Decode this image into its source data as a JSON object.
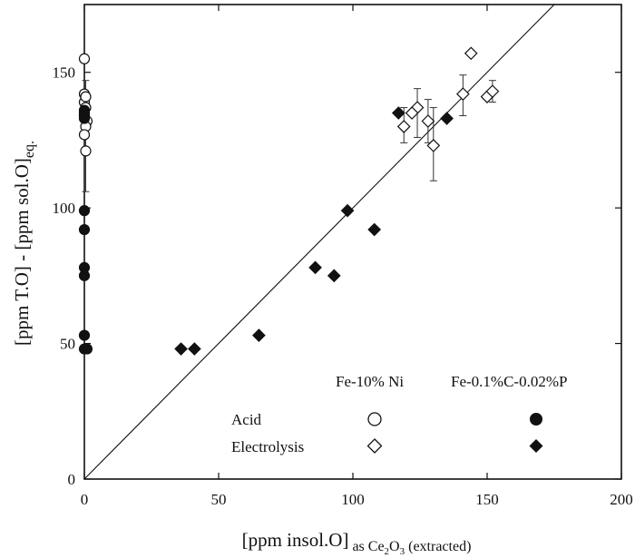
{
  "chart_data": {
    "type": "scatter",
    "xlim": [
      0,
      200
    ],
    "ylim": [
      0,
      175
    ],
    "xticks": [
      0,
      50,
      100,
      150,
      200
    ],
    "yticks": [
      0,
      50,
      100,
      150
    ],
    "grid": false,
    "xlabel": {
      "main": "[ppm insol.O]",
      "sub_prefix": "as Ce",
      "sub_2": "2",
      "sub_mid": "O",
      "sub_3": "3",
      "sub_suffix": " (extracted)"
    },
    "ylabel": {
      "main": "[ppm T.O] - [ppm sol.O]",
      "sub": "eq."
    },
    "reference_line": {
      "type": "y=x",
      "x": [
        0,
        200
      ],
      "y": [
        0,
        200
      ]
    },
    "legend": {
      "placement": "bottom-right",
      "column_headers": [
        "Fe-10% Ni",
        "Fe-0.1%C-0.02%P"
      ],
      "rows": [
        "Acid",
        "Electrolysis"
      ]
    },
    "series": [
      {
        "name": "Fe-10% Ni Acid",
        "marker": "circle-open",
        "points": [
          [
            0,
            155
          ],
          [
            0,
            142
          ],
          [
            0,
            139
          ],
          [
            0.5,
            141
          ],
          [
            0.5,
            137
          ],
          [
            0,
            134
          ],
          [
            1,
            132
          ],
          [
            0.5,
            130
          ],
          [
            0,
            127
          ],
          [
            0.5,
            121
          ]
        ],
        "error_bars": [
          {
            "x": 0.5,
            "y": 141,
            "low": 135,
            "high": 147
          },
          {
            "x": 0.5,
            "y": 121,
            "low": 106,
            "high": 136
          }
        ]
      },
      {
        "name": "Fe-10% Ni Electrolysis",
        "marker": "diamond-open",
        "points": [
          [
            144,
            157
          ],
          [
            141,
            142
          ],
          [
            150,
            141
          ],
          [
            152,
            143
          ],
          [
            124,
            137
          ],
          [
            122,
            135
          ],
          [
            119,
            130
          ],
          [
            128,
            132
          ],
          [
            130,
            123
          ]
        ],
        "error_bars": [
          {
            "x": 141,
            "y": 142,
            "low": 134,
            "high": 149
          },
          {
            "x": 152,
            "y": 143,
            "low": 139,
            "high": 147
          },
          {
            "x": 124,
            "y": 137,
            "low": 126,
            "high": 144
          },
          {
            "x": 119,
            "y": 130,
            "low": 124,
            "high": 137
          },
          {
            "x": 128,
            "y": 132,
            "low": 124,
            "high": 140
          },
          {
            "x": 130,
            "y": 123,
            "low": 110,
            "high": 137
          }
        ]
      },
      {
        "name": "Fe-0.1%C-0.02%P Acid",
        "marker": "circle-filled",
        "points": [
          [
            0,
            136
          ],
          [
            0,
            135
          ],
          [
            0,
            134
          ],
          [
            0,
            133
          ],
          [
            0,
            99
          ],
          [
            0,
            92
          ],
          [
            0,
            78
          ],
          [
            0,
            75
          ],
          [
            0,
            53
          ],
          [
            0,
            48
          ],
          [
            1,
            48
          ]
        ]
      },
      {
        "name": "Fe-0.1%C-0.02%P Electrolysis",
        "marker": "diamond-filled",
        "points": [
          [
            36,
            48
          ],
          [
            41,
            48
          ],
          [
            65,
            53
          ],
          [
            86,
            78
          ],
          [
            93,
            75
          ],
          [
            98,
            99
          ],
          [
            108,
            92
          ],
          [
            117,
            135
          ],
          [
            135,
            133
          ]
        ]
      }
    ]
  }
}
